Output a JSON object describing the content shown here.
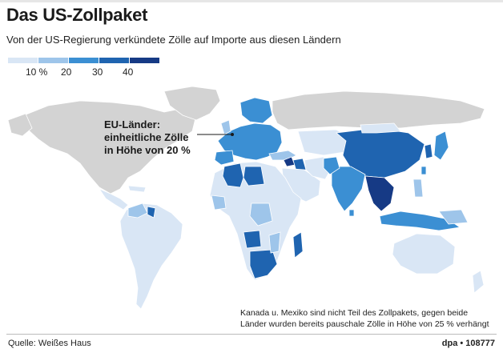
{
  "header": {
    "title": "Das US-Zollpaket",
    "subtitle": "Von der US-Regierung verkündete Zölle auf Importe aus diesen Ländern"
  },
  "legend": {
    "colors": [
      "#d9e6f5",
      "#9ec5ea",
      "#3b8fd3",
      "#1f64b0",
      "#163a85"
    ],
    "labels": [
      "10 %",
      "20",
      "30",
      "40"
    ]
  },
  "map": {
    "ocean_color": "#ffffff",
    "no_tariff_color": "#d3d3d3",
    "callout": [
      "EU-Länder:",
      "einheitliche Zölle",
      "in Höhe von 20 %"
    ]
  },
  "footnote": [
    "Kanada u. Mexiko sind nicht Teil des Zollpakets, gegen beide",
    "Länder wurden bereits pauschale Zölle in Höhe von 25 % verhängt"
  ],
  "footer": {
    "source": "Quelle: Weißes Haus",
    "agency": "dpa • 108777"
  }
}
